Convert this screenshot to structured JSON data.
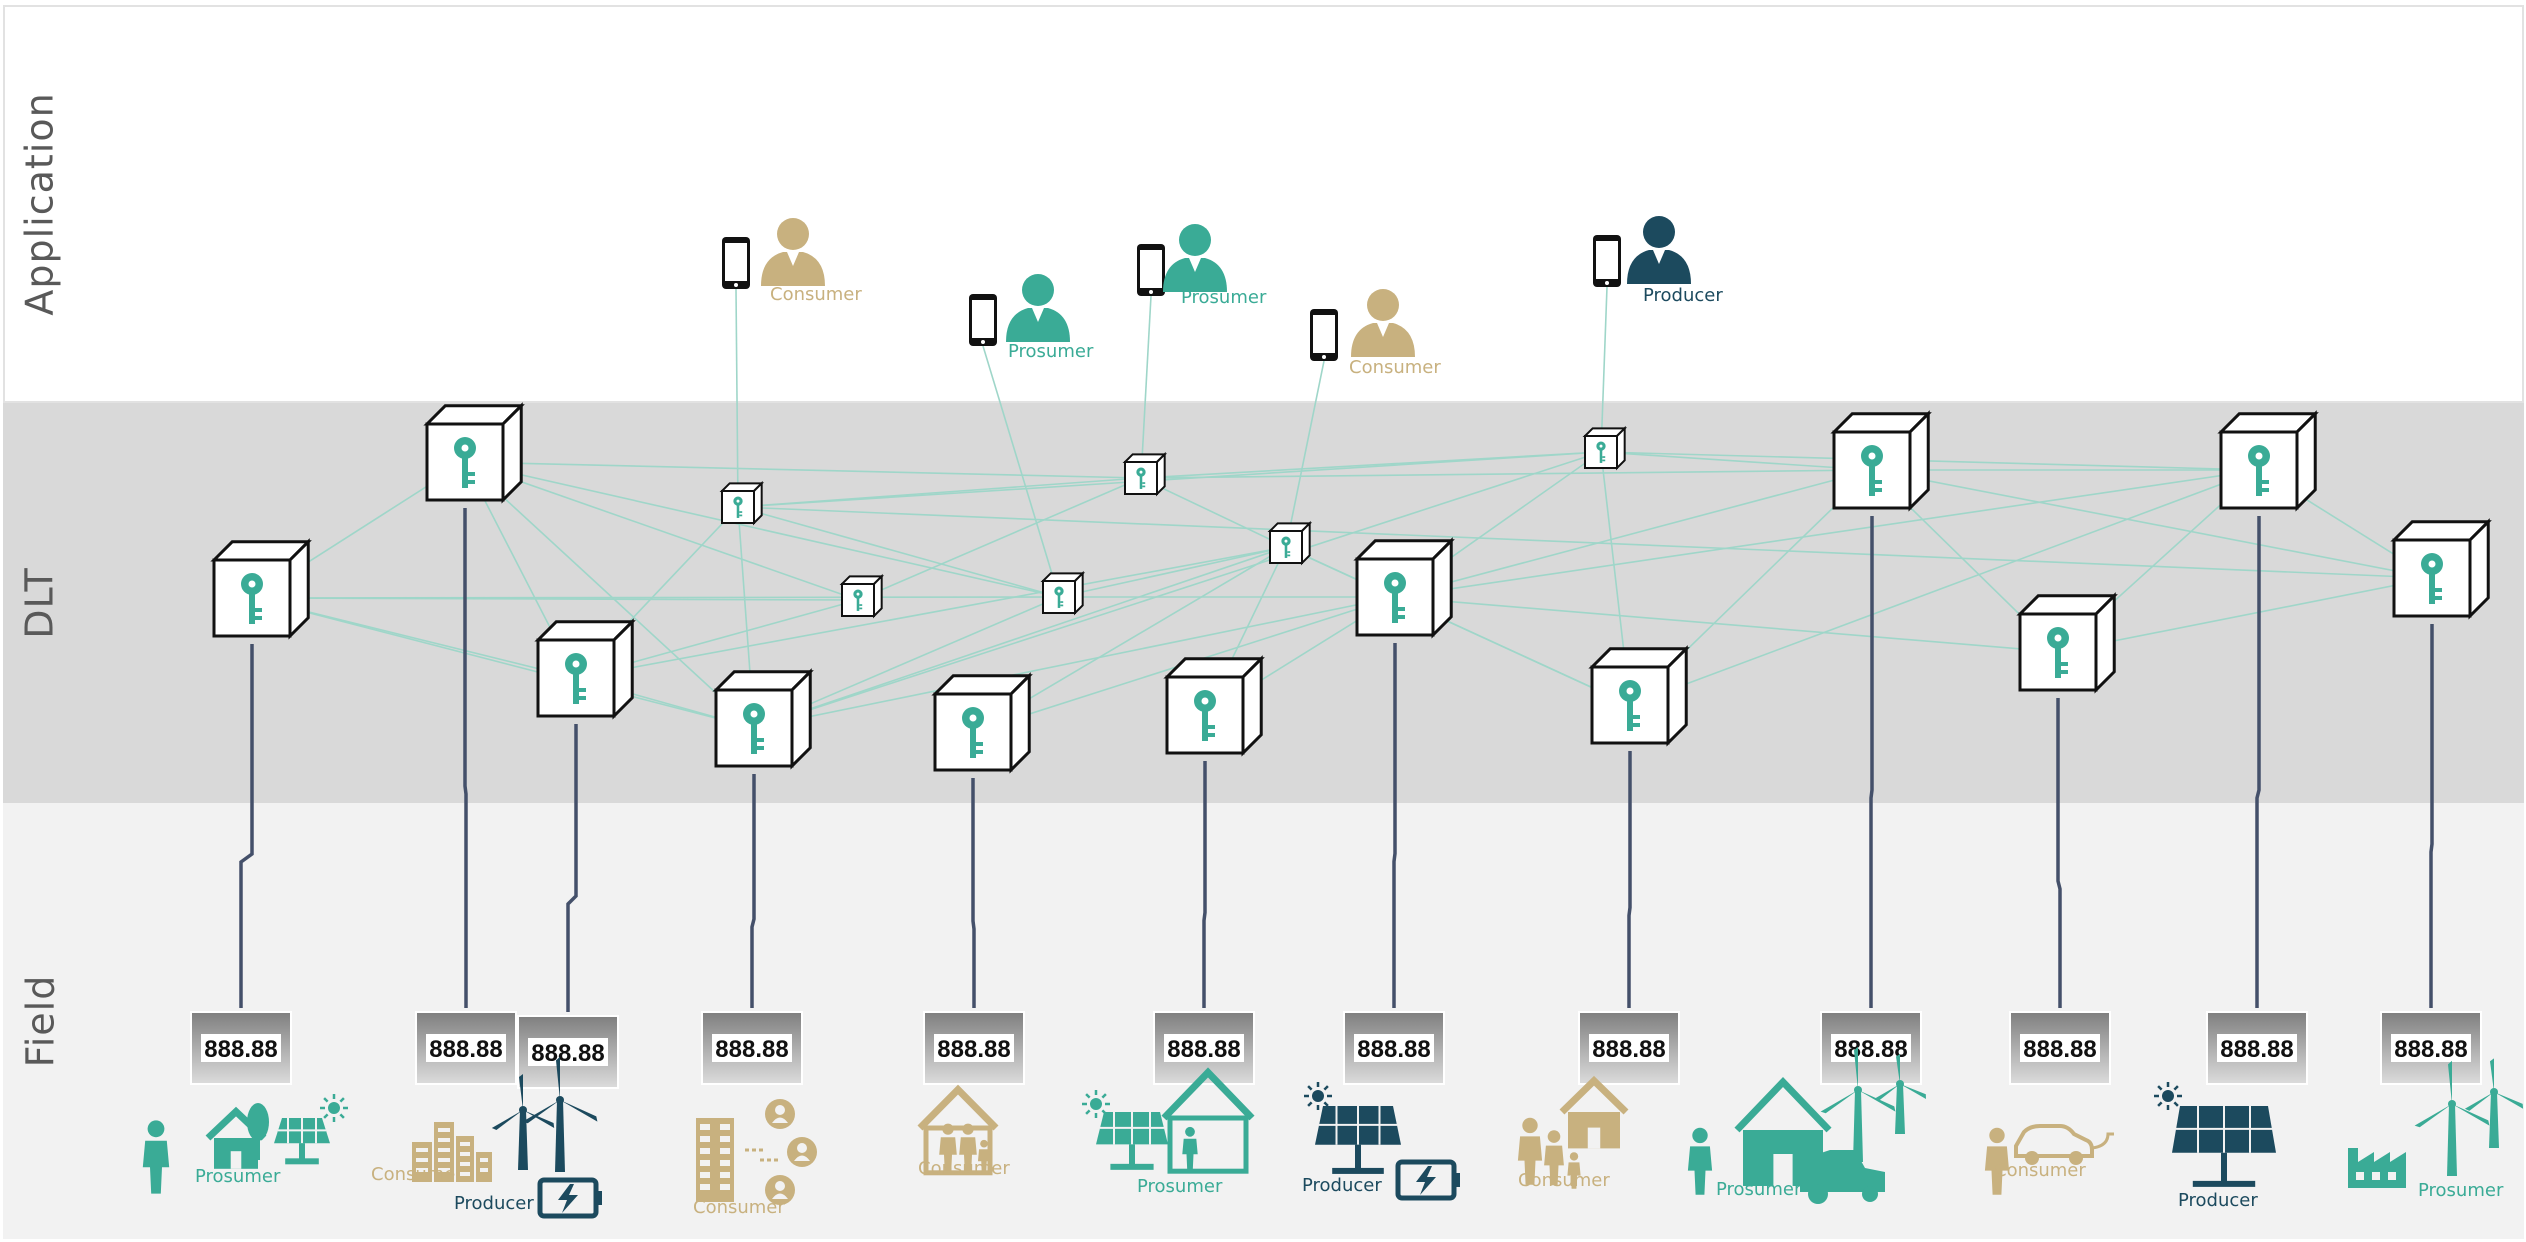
{
  "layers": {
    "application": "Application",
    "dlt": "DLT",
    "field": "Field"
  },
  "colors": {
    "teal": "#3aab96",
    "navy": "#1c4a5e",
    "tan": "#c8b17f",
    "edge": "#9fd6c9",
    "wire": "#44506a"
  },
  "app_users": [
    {
      "role": "Consumer"
    },
    {
      "role": "Prosumer"
    },
    {
      "role": "Prosumer"
    },
    {
      "role": "Consumer"
    },
    {
      "role": "Producer"
    }
  ],
  "field_sites": [
    {
      "role": "Prosumer",
      "meter": "888.88",
      "icon": "family-house-solar-icon"
    },
    {
      "role": "Consumer",
      "meter": "888.88",
      "icon": "city-buildings-icon"
    },
    {
      "role": "Producer",
      "meter": "888.88",
      "icon": "wind-turbine-battery-icon"
    },
    {
      "role": "Consumer",
      "meter": "888.88",
      "icon": "office-building-users-icon"
    },
    {
      "role": "Consumer",
      "meter": "888.88",
      "icon": "family-home-icon"
    },
    {
      "role": "Prosumer",
      "meter": "888.88",
      "icon": "solar-house-icon"
    },
    {
      "role": "Producer",
      "meter": "888.88",
      "icon": "solar-panel-battery-icon"
    },
    {
      "role": "Consumer",
      "meter": "888.88",
      "icon": "family-house-icon"
    },
    {
      "role": "Prosumer",
      "meter": "888.88",
      "icon": "farm-wind-tractor-icon"
    },
    {
      "role": "Consumer",
      "meter": "888.88",
      "icon": "person-electric-car-icon"
    },
    {
      "role": "Producer",
      "meter": "888.88",
      "icon": "solar-panel-icon"
    },
    {
      "role": "Prosumer",
      "meter": "888.88",
      "icon": "factory-wind-icon"
    }
  ]
}
